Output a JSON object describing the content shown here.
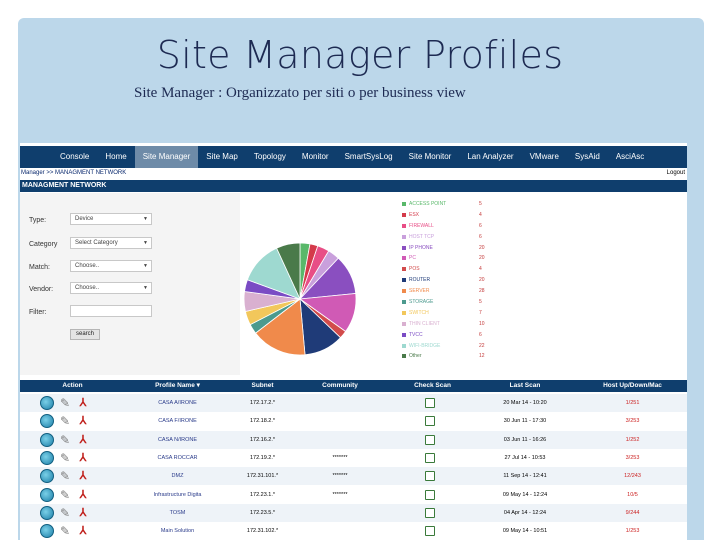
{
  "slide": {
    "title": "Site Manager Profiles",
    "subtitle": "Site Manager   : Organizzato per siti o per business view"
  },
  "nav": {
    "items": [
      {
        "label": "Console"
      },
      {
        "label": "Home"
      },
      {
        "label": "Site Manager",
        "active": true
      },
      {
        "label": "Site Map"
      },
      {
        "label": "Topology"
      },
      {
        "label": "Monitor"
      },
      {
        "label": "SmartSysLog"
      },
      {
        "label": "Site Monitor"
      },
      {
        "label": "Lan Analyzer"
      },
      {
        "label": "VMware"
      },
      {
        "label": "SysAid"
      },
      {
        "label": "AsciAsc"
      }
    ]
  },
  "breadcrumb": {
    "text": "Manager >> MANAGMENT NETWORK",
    "logout": "Logout"
  },
  "section_title": "MANAGMENT NETWORK",
  "filters": {
    "type": {
      "label": "Type:",
      "value": "Device"
    },
    "category": {
      "label": "Category",
      "value": "Select Category"
    },
    "match": {
      "label": "Match:",
      "value": "Choose.."
    },
    "vendor": {
      "label": "Vendor:",
      "value": "Choose.."
    },
    "filter": {
      "label": "Filter:",
      "value": ""
    },
    "search_label": "search"
  },
  "chart_data": {
    "type": "pie",
    "categories": [
      "ACCESS POINT",
      "ESX",
      "FIREWALL",
      "HOST TCP",
      "IP PHONE",
      "PC",
      "POS",
      "ROUTER",
      "SERVER",
      "STORAGE",
      "SWITCH",
      "THIN CLIENT",
      "TVCC",
      "WIFI-BRIDGE",
      "Other"
    ],
    "values": [
      5,
      4,
      6,
      6,
      20,
      20,
      4,
      20,
      28,
      5,
      7,
      10,
      6,
      22,
      12
    ],
    "colors": [
      "#59b86a",
      "#d43a4a",
      "#e84e86",
      "#c9a0dc",
      "#8a4fc0",
      "#d05ab5",
      "#d24b4b",
      "#1f3b78",
      "#f08a4b",
      "#4c9a8e",
      "#f2c75b",
      "#d9b0d0",
      "#7a4bc4",
      "#9ed9d0",
      "#4a7a4a"
    ]
  },
  "table": {
    "headers": [
      "Action",
      "Profile Name ▾",
      "Subnet",
      "Community",
      "Check Scan",
      "Last Scan",
      "Host Up/Down/Mac"
    ],
    "rows": [
      {
        "profile": "CASA A/IRONE",
        "subnet": "172.17.2.*",
        "community": "",
        "last_scan": "20 Mar 14 - 10:20",
        "hosts": "1/251"
      },
      {
        "profile": "CASA F/IRONE",
        "subnet": "172.18.2.*",
        "community": "",
        "last_scan": "30 Jun 11 - 17:30",
        "hosts": "3/253"
      },
      {
        "profile": "CASA N/IRONE",
        "subnet": "172.16.2.*",
        "community": "",
        "last_scan": "03 Jun 11 - 16:26",
        "hosts": "1/252"
      },
      {
        "profile": "CASA ROCCAR",
        "subnet": "172.19.2.*",
        "community": "*******",
        "last_scan": "27 Jul 14 - 10:53",
        "hosts": "3/253"
      },
      {
        "profile": "DMZ",
        "subnet": "172.31.101.*",
        "community": "*******",
        "last_scan": "11 Sep 14 - 12:41",
        "hosts": "12/243"
      },
      {
        "profile": "Infrastructure Digita",
        "subnet": "172.23.1.*",
        "community": "*******",
        "last_scan": "09 May 14 - 12:24",
        "hosts": "10/5"
      },
      {
        "profile": "TOSM",
        "subnet": "172.23.5.*",
        "community": "",
        "last_scan": "04 Apr 14 - 12:24",
        "hosts": "9/244"
      },
      {
        "profile": "Main Solution",
        "subnet": "172.31.102.*",
        "community": "",
        "last_scan": "09 May 14 - 10:51",
        "hosts": "1/253"
      }
    ]
  }
}
